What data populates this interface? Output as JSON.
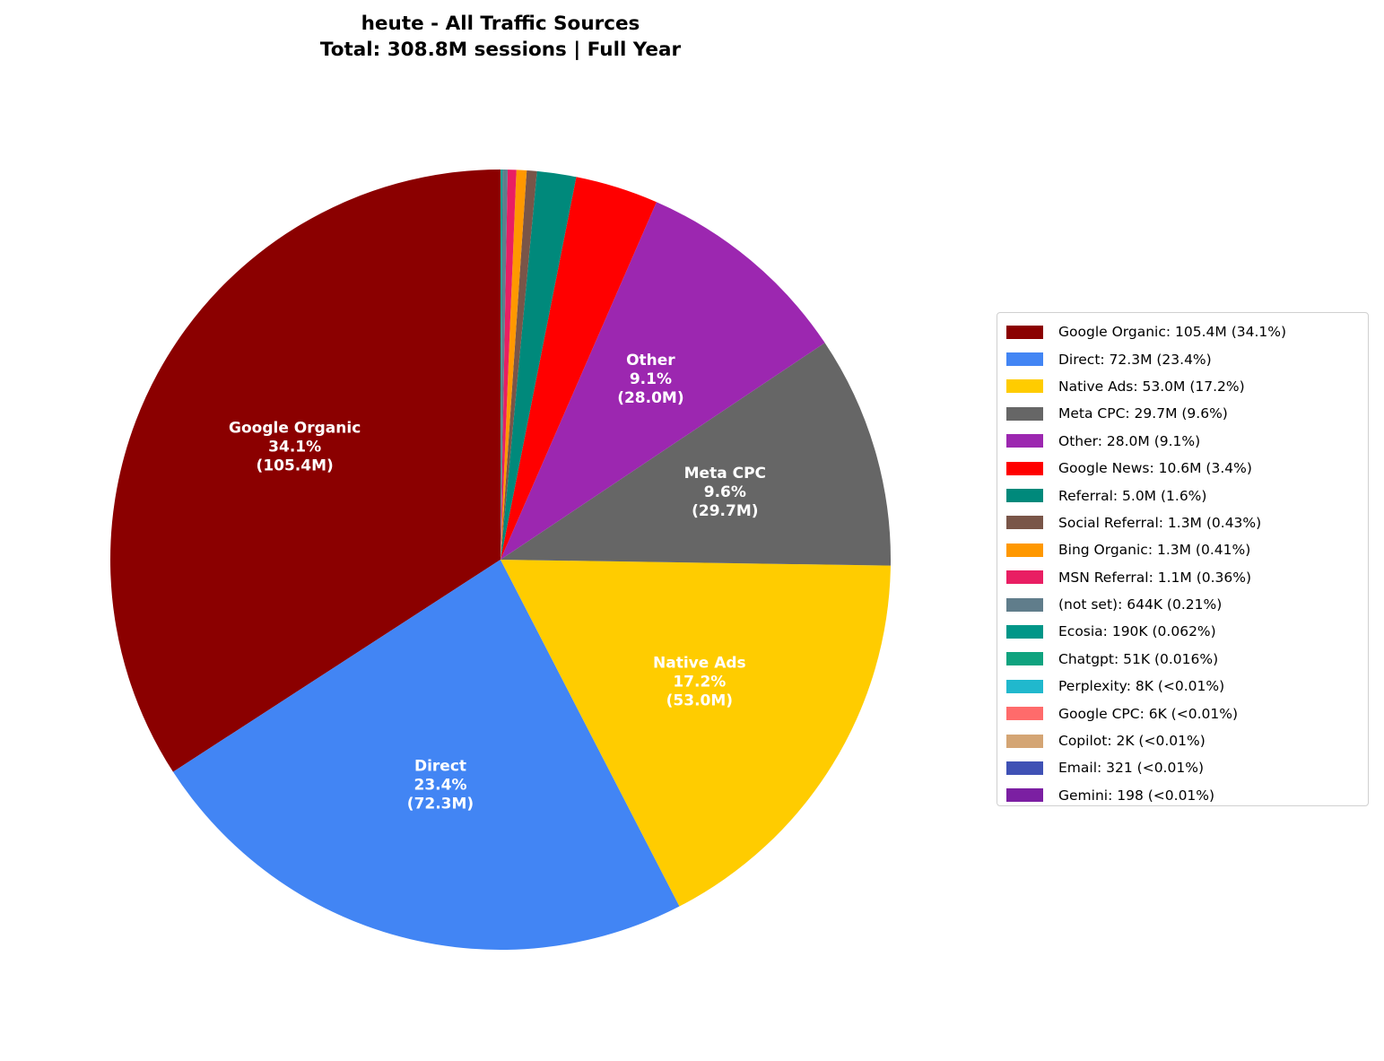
{
  "chart_data": {
    "type": "pie",
    "title": "heute - All Traffic Sources",
    "subtitle": "Total: 308.8M sessions | Full Year",
    "start_angle_deg": 90,
    "direction": "counterclockwise",
    "legend_placement": "right",
    "slices": [
      {
        "name": "Google Organic",
        "value": 105400000,
        "value_label": "105.4M",
        "percent_label": "34.1%",
        "legend": "Google Organic: 105.4M (34.1%)",
        "color": "#8B0000",
        "show_label": true
      },
      {
        "name": "Direct",
        "value": 72300000,
        "value_label": "72.3M",
        "percent_label": "23.4%",
        "legend": "Direct: 72.3M (23.4%)",
        "color": "#4285F4",
        "show_label": true
      },
      {
        "name": "Native Ads",
        "value": 53000000,
        "value_label": "53.0M",
        "percent_label": "17.2%",
        "legend": "Native Ads: 53.0M (17.2%)",
        "color": "#FFCC00",
        "show_label": true
      },
      {
        "name": "Meta CPC",
        "value": 29700000,
        "value_label": "29.7M",
        "percent_label": "9.6%",
        "legend": "Meta CPC: 29.7M (9.6%)",
        "color": "#666666",
        "show_label": true
      },
      {
        "name": "Other",
        "value": 28000000,
        "value_label": "28.0M",
        "percent_label": "9.1%",
        "legend": "Other: 28.0M (9.1%)",
        "color": "#9C27B0",
        "show_label": true
      },
      {
        "name": "Google News",
        "value": 10600000,
        "value_label": "10.6M",
        "percent_label": "3.4%",
        "legend": "Google News: 10.6M (3.4%)",
        "color": "#FF0000",
        "show_label": false
      },
      {
        "name": "Referral",
        "value": 5000000,
        "value_label": "5.0M",
        "percent_label": "1.6%",
        "legend": "Referral: 5.0M (1.6%)",
        "color": "#00897B",
        "show_label": false
      },
      {
        "name": "Social Referral",
        "value": 1300000,
        "value_label": "1.3M",
        "percent_label": "0.43%",
        "legend": "Social Referral: 1.3M (0.43%)",
        "color": "#795548",
        "show_label": false
      },
      {
        "name": "Bing Organic",
        "value": 1300000,
        "value_label": "1.3M",
        "percent_label": "0.41%",
        "legend": "Bing Organic: 1.3M (0.41%)",
        "color": "#FF9800",
        "show_label": false
      },
      {
        "name": "MSN Referral",
        "value": 1100000,
        "value_label": "1.1M",
        "percent_label": "0.36%",
        "legend": "MSN Referral: 1.1M (0.36%)",
        "color": "#E91E63",
        "show_label": false
      },
      {
        "name": "(not set)",
        "value": 644000,
        "value_label": "644K",
        "percent_label": "0.21%",
        "legend": "(not set): 644K (0.21%)",
        "color": "#607D8B",
        "show_label": false
      },
      {
        "name": "Ecosia",
        "value": 190000,
        "value_label": "190K",
        "percent_label": "0.062%",
        "legend": "Ecosia: 190K (0.062%)",
        "color": "#009688",
        "show_label": false
      },
      {
        "name": "Chatgpt",
        "value": 51000,
        "value_label": "51K",
        "percent_label": "0.016%",
        "legend": "Chatgpt: 51K (0.016%)",
        "color": "#10A37F",
        "show_label": false
      },
      {
        "name": "Perplexity",
        "value": 8000,
        "value_label": "8K",
        "percent_label": "<0.01%",
        "legend": "Perplexity: 8K (<0.01%)",
        "color": "#20B8CD",
        "show_label": false
      },
      {
        "name": "Google CPC",
        "value": 6000,
        "value_label": "6K",
        "percent_label": "<0.01%",
        "legend": "Google CPC: 6K (<0.01%)",
        "color": "#FF6B6B",
        "show_label": false
      },
      {
        "name": "Copilot",
        "value": 2000,
        "value_label": "2K",
        "percent_label": "<0.01%",
        "legend": "Copilot: 2K (<0.01%)",
        "color": "#D4A574",
        "show_label": false
      },
      {
        "name": "Email",
        "value": 321,
        "value_label": "321",
        "percent_label": "<0.01%",
        "legend": "Email: 321 (<0.01%)",
        "color": "#3F51B5",
        "show_label": false
      },
      {
        "name": "Gemini",
        "value": 198,
        "value_label": "198",
        "percent_label": "<0.01%",
        "legend": "Gemini: 198 (<0.01%)",
        "color": "#7B1FA2",
        "show_label": false
      }
    ]
  }
}
